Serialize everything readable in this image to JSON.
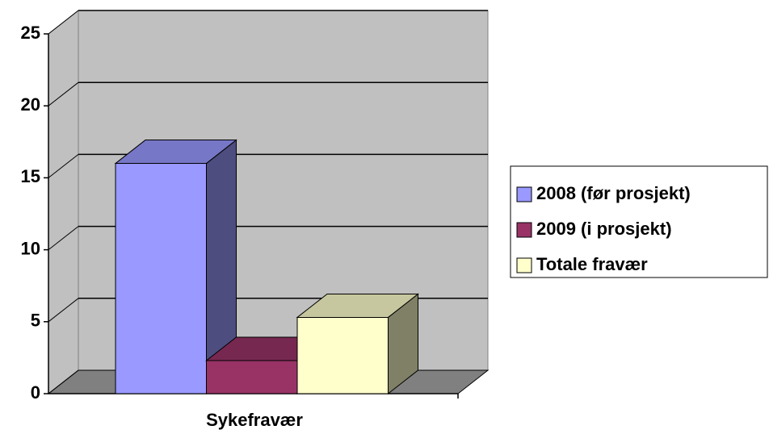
{
  "chart_data": {
    "type": "bar3d",
    "categories": [
      "Sykefravær"
    ],
    "series": [
      {
        "name": "2008 (før prosjekt)",
        "color": "#9999ff",
        "values": [
          16
        ]
      },
      {
        "name": "2009 (i prosjekt)",
        "color": "#993366",
        "values": [
          2.3
        ]
      },
      {
        "name": "Totale fravær",
        "color": "#ffffcc",
        "values": [
          5.3
        ]
      }
    ],
    "ylim": [
      0,
      25
    ],
    "yticks": [
      0,
      5,
      10,
      15,
      20,
      25
    ],
    "grid": true,
    "legend": "right"
  }
}
